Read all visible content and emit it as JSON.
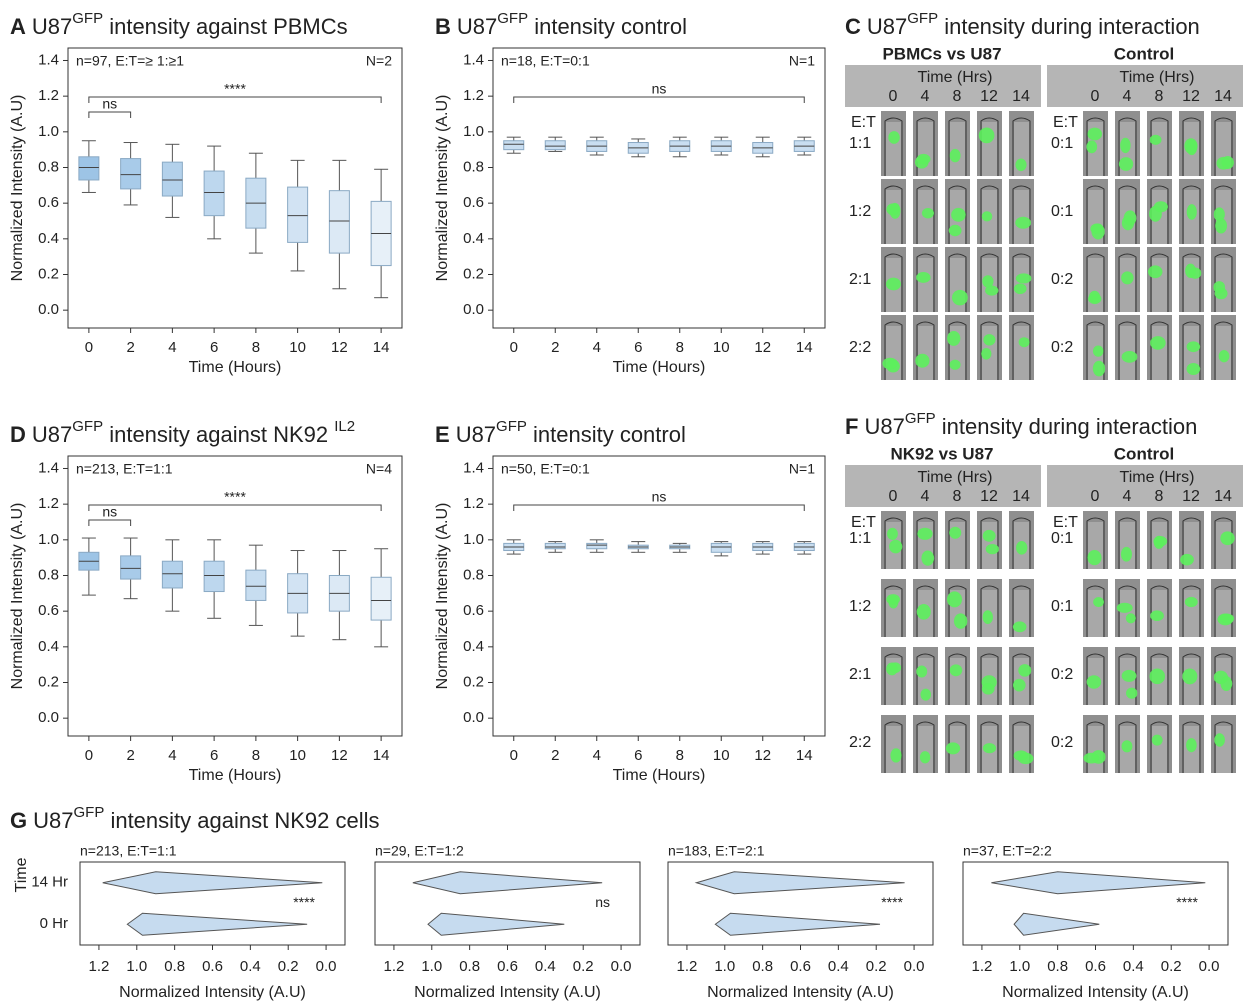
{
  "chart_data": [
    {
      "type": "box",
      "letter": "A",
      "title": [
        "U87",
        "GFP",
        " intensity against PBMCs"
      ],
      "ylabel": "Normalized Intensity (A.U)",
      "xlabel": "Time (Hours)",
      "x": [
        0,
        2,
        4,
        6,
        8,
        10,
        12,
        14
      ],
      "xlim": [
        -1,
        15
      ],
      "ylim": [
        -0.1,
        1.47
      ],
      "yticks": [
        {
          "value": 0,
          "label": "0.0"
        },
        0.2,
        0.4,
        0.6,
        0.8,
        {
          "value": 1,
          "label": "1.0"
        },
        1.2,
        1.4
      ],
      "low": [
        0.66,
        0.59,
        0.52,
        0.4,
        0.32,
        0.22,
        0.12,
        0.07
      ],
      "q1": [
        0.73,
        0.68,
        0.64,
        0.53,
        0.46,
        0.38,
        0.32,
        0.25
      ],
      "median": [
        0.8,
        0.76,
        0.73,
        0.66,
        0.6,
        0.53,
        0.5,
        0.43
      ],
      "q3": [
        0.86,
        0.85,
        0.83,
        0.78,
        0.74,
        0.69,
        0.67,
        0.61
      ],
      "high": [
        0.95,
        0.94,
        0.93,
        0.92,
        0.88,
        0.84,
        0.84,
        0.79
      ],
      "colors": [
        "#9dc4e6",
        "#a8cbe9",
        "#b3d1eb",
        "#bdd7ee",
        "#c7ddf0",
        "#d2e3f3",
        "#dce9f5",
        "#e7f0f8"
      ],
      "n_label": "n=97, E:T=≥ 1:≥1",
      "N_label": "N=2",
      "ns_label": "ns",
      "sig_label": "****"
    },
    {
      "type": "box",
      "letter": "B",
      "title": [
        "U87",
        "GFP",
        " intensity control"
      ],
      "ylabel": "Normalized Intensity (A.U)",
      "xlabel": "Time (Hours)",
      "x": [
        0,
        2,
        4,
        6,
        8,
        10,
        12,
        14
      ],
      "xlim": [
        -1,
        15
      ],
      "ylim": [
        -0.1,
        1.47
      ],
      "yticks": [
        {
          "value": 0,
          "label": "0.0"
        },
        0.2,
        0.4,
        0.6,
        0.8,
        {
          "value": 1,
          "label": "1.0"
        },
        1.2,
        1.4
      ],
      "low": [
        0.88,
        0.89,
        0.87,
        0.86,
        0.86,
        0.87,
        0.86,
        0.87
      ],
      "q1": [
        0.9,
        0.9,
        0.89,
        0.88,
        0.89,
        0.89,
        0.88,
        0.89
      ],
      "median": [
        0.93,
        0.92,
        0.92,
        0.91,
        0.92,
        0.92,
        0.91,
        0.92
      ],
      "q3": [
        0.95,
        0.95,
        0.95,
        0.94,
        0.95,
        0.95,
        0.94,
        0.95
      ],
      "high": [
        0.97,
        0.97,
        0.97,
        0.96,
        0.97,
        0.97,
        0.97,
        0.97
      ],
      "colors": [
        "#c9def1",
        "#c9def1",
        "#c9def1",
        "#c9def1",
        "#c9def1",
        "#c9def1",
        "#c9def1",
        "#c9def1"
      ],
      "n_label": "n=18, E:T=0:1",
      "N_label": "N=1",
      "sig_label": "ns"
    },
    {
      "type": "box",
      "letter": "D",
      "title": [
        "U87",
        "GFP",
        " intensity against NK92 ",
        "IL2"
      ],
      "ylabel": "Normalized Intensity (A.U)",
      "xlabel": "Time (Hours)",
      "x": [
        0,
        2,
        4,
        6,
        8,
        10,
        12,
        14
      ],
      "xlim": [
        -1,
        15
      ],
      "ylim": [
        -0.1,
        1.47
      ],
      "yticks": [
        {
          "value": 0,
          "label": "0.0"
        },
        0.2,
        0.4,
        0.6,
        0.8,
        {
          "value": 1,
          "label": "1.0"
        },
        1.2,
        1.4
      ],
      "low": [
        0.69,
        0.67,
        0.6,
        0.56,
        0.52,
        0.46,
        0.44,
        0.4
      ],
      "q1": [
        0.83,
        0.78,
        0.73,
        0.71,
        0.66,
        0.59,
        0.6,
        0.55
      ],
      "median": [
        0.88,
        0.84,
        0.81,
        0.8,
        0.74,
        0.7,
        0.7,
        0.66
      ],
      "q3": [
        0.93,
        0.91,
        0.88,
        0.88,
        0.83,
        0.81,
        0.8,
        0.79
      ],
      "high": [
        1.01,
        1.01,
        1.0,
        1.0,
        0.97,
        0.94,
        0.94,
        0.95
      ],
      "colors": [
        "#9dc4e6",
        "#a8cbe9",
        "#b3d1eb",
        "#bdd7ee",
        "#c7ddf0",
        "#d2e3f3",
        "#dce9f5",
        "#e7f0f8"
      ],
      "n_label": "n=213, E:T=1:1",
      "N_label": "N=4",
      "ns_label": "ns",
      "sig_label": "****"
    },
    {
      "type": "box",
      "letter": "E",
      "title": [
        "U87",
        "GFP",
        " intensity control"
      ],
      "ylabel": "Normalized Intensity (A.U)",
      "xlabel": "Time (Hours)",
      "x": [
        0,
        2,
        4,
        6,
        8,
        10,
        12,
        14
      ],
      "xlim": [
        -1,
        15
      ],
      "ylim": [
        -0.1,
        1.47
      ],
      "yticks": [
        {
          "value": 0,
          "label": "0.0"
        },
        0.2,
        0.4,
        0.6,
        0.8,
        {
          "value": 1,
          "label": "1.0"
        },
        1.2,
        1.4
      ],
      "low": [
        0.92,
        0.93,
        0.93,
        0.93,
        0.93,
        0.91,
        0.92,
        0.92
      ],
      "q1": [
        0.94,
        0.95,
        0.95,
        0.95,
        0.95,
        0.93,
        0.94,
        0.94
      ],
      "median": [
        0.96,
        0.96,
        0.97,
        0.96,
        0.96,
        0.96,
        0.96,
        0.96
      ],
      "q3": [
        0.98,
        0.98,
        0.98,
        0.97,
        0.97,
        0.98,
        0.98,
        0.98
      ],
      "high": [
        1.0,
        0.99,
        1.0,
        0.99,
        0.98,
        0.99,
        0.99,
        0.99
      ],
      "colors": [
        "#c9def1",
        "#c9def1",
        "#c9def1",
        "#c9def1",
        "#c9def1",
        "#c9def1",
        "#c9def1",
        "#c9def1"
      ],
      "n_label": "n=50, E:T=0:1",
      "N_label": "N=1",
      "sig_label": "ns"
    },
    {
      "type": "violin",
      "subtitle": "n=213, E:T=1:1",
      "xlabel": "Normalized Intensity (A.U)",
      "categories": [
        "14 Hr",
        "0 Hr"
      ],
      "xlim": [
        1.3,
        -0.1
      ],
      "xticks": [
        1.2,
        {
          "value": 1,
          "label": "1.0"
        },
        0.8,
        0.6,
        0.4,
        0.2,
        {
          "value": 0,
          "label": "0.0"
        }
      ],
      "high": [
        1.18,
        1.05
      ],
      "peak": [
        0.9,
        0.97
      ],
      "low": [
        0.02,
        0.1
      ],
      "annotation": "****",
      "color": "#c6dbef"
    },
    {
      "type": "violin",
      "subtitle": "n=29, E:T=1:2",
      "xlabel": "Normalized Intensity (A.U)",
      "xlim": [
        1.3,
        -0.1
      ],
      "xticks": [
        1.2,
        {
          "value": 1,
          "label": "1.0"
        },
        0.8,
        0.6,
        0.4,
        0.2,
        {
          "value": 0,
          "label": "0.0"
        }
      ],
      "high": [
        1.1,
        1.02
      ],
      "peak": [
        0.85,
        0.95
      ],
      "low": [
        0.1,
        0.3
      ],
      "annotation": "ns",
      "color": "#c6dbef"
    },
    {
      "type": "violin",
      "subtitle": "n=183, E:T=2:1",
      "xlabel": "Normalized Intensity (A.U)",
      "xlim": [
        1.3,
        -0.1
      ],
      "xticks": [
        1.2,
        {
          "value": 1,
          "label": "1.0"
        },
        0.8,
        0.6,
        0.4,
        0.2,
        {
          "value": 0,
          "label": "0.0"
        }
      ],
      "high": [
        1.15,
        1.05
      ],
      "peak": [
        0.95,
        0.97
      ],
      "low": [
        0.05,
        0.18
      ],
      "annotation": "****",
      "color": "#c6dbef"
    },
    {
      "type": "violin",
      "subtitle": "n=37, E:T=2:2",
      "xlabel": "Normalized Intensity (A.U)",
      "xlim": [
        1.3,
        -0.1
      ],
      "xticks": [
        1.2,
        {
          "value": 1,
          "label": "1.0"
        },
        0.8,
        0.6,
        0.4,
        0.2,
        {
          "value": 0,
          "label": "0.0"
        }
      ],
      "high": [
        1.15,
        1.03
      ],
      "peak": [
        0.8,
        0.98
      ],
      "low": [
        0.02,
        0.58
      ],
      "annotation": "****",
      "color": "#c6dbef"
    }
  ],
  "panel_g": {
    "letter": "G",
    "title": [
      "U87",
      "GFP",
      " intensity against NK92 cells"
    ],
    "ylabel": "Time"
  },
  "image_panels": [
    {
      "letter": "C",
      "title": [
        "U87",
        "GFP",
        " intensity during interaction"
      ],
      "groups": [
        {
          "heading": "PBMCs vs U87",
          "time_label": "Time (Hrs)",
          "times": [
            "0",
            "4",
            "8",
            "12",
            "14"
          ],
          "ratio_header": "E:T",
          "rows": [
            "1:1",
            "1:2",
            "2:1",
            "2:2"
          ]
        },
        {
          "heading": "Control",
          "time_label": "Time (Hrs)",
          "times": [
            "0",
            "4",
            "8",
            "12",
            "14"
          ],
          "ratio_header": "E:T",
          "rows": [
            "0:1",
            "0:1",
            "0:2",
            "0:2"
          ]
        }
      ]
    },
    {
      "letter": "F",
      "title": [
        "U87",
        "GFP",
        " intensity during interaction"
      ],
      "groups": [
        {
          "heading": "NK92 vs U87",
          "time_label": "Time (Hrs)",
          "times": [
            "0",
            "4",
            "8",
            "12",
            "14"
          ],
          "ratio_header": "E:T",
          "rows": [
            "1:1",
            "1:2",
            "2:1",
            "2:2"
          ]
        },
        {
          "heading": "Control",
          "time_label": "Time (Hrs)",
          "times": [
            "0",
            "4",
            "8",
            "12",
            "14"
          ],
          "ratio_header": "E:T",
          "rows": [
            "0:1",
            "0:1",
            "0:2",
            "0:2"
          ]
        }
      ]
    }
  ]
}
